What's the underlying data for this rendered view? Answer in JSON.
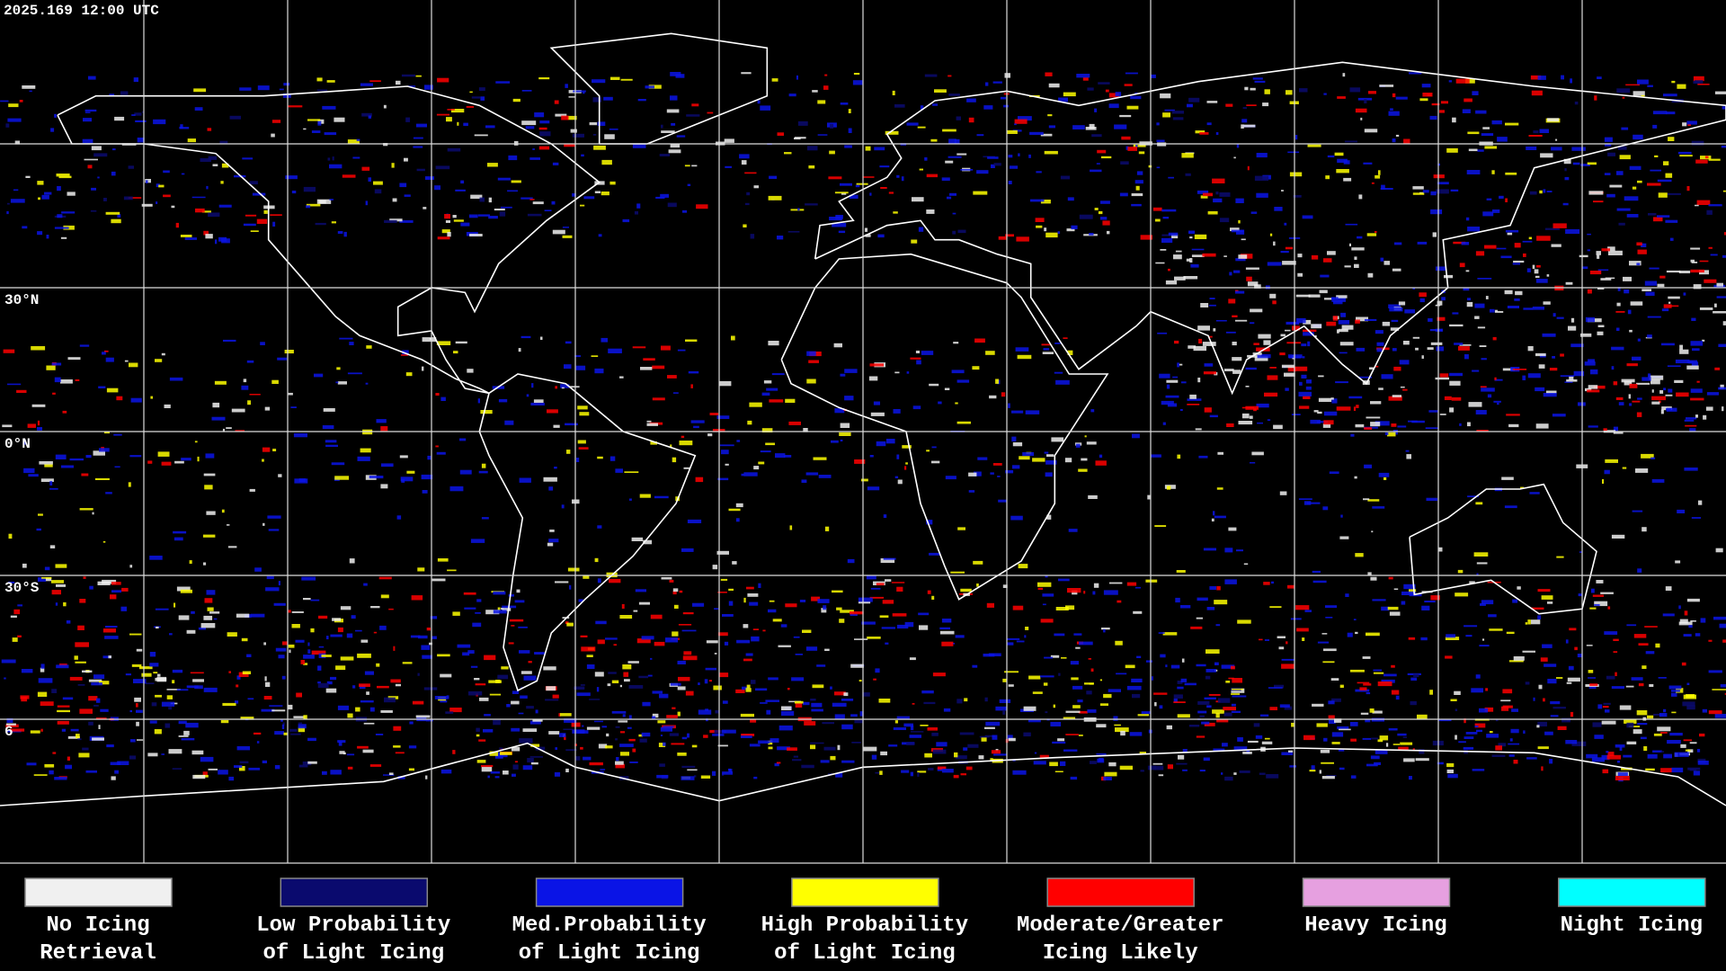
{
  "header": {
    "timestamp": "2025.169 12:00 UTC"
  },
  "latitude_labels": [
    "30°N",
    "0°N",
    "30°S",
    "6"
  ],
  "legend": [
    {
      "lines": [
        "No Icing",
        "Retrieval"
      ],
      "color": "#f0f0f0"
    },
    {
      "lines": [
        "Low Probability",
        "of Light Icing"
      ],
      "color": "#0a0a6e"
    },
    {
      "lines": [
        "Med.Probability",
        "of Light Icing"
      ],
      "color": "#0a14e6"
    },
    {
      "lines": [
        "High Probability",
        "of Light Icing"
      ],
      "color": "#ffff00"
    },
    {
      "lines": [
        "Moderate/Greater",
        "Icing Likely"
      ],
      "color": "#ff0000"
    },
    {
      "lines": [
        "Heavy Icing"
      ],
      "color": "#e6a0e0"
    },
    {
      "lines": [
        "Night Icing"
      ],
      "color": "#00ffff"
    }
  ]
}
